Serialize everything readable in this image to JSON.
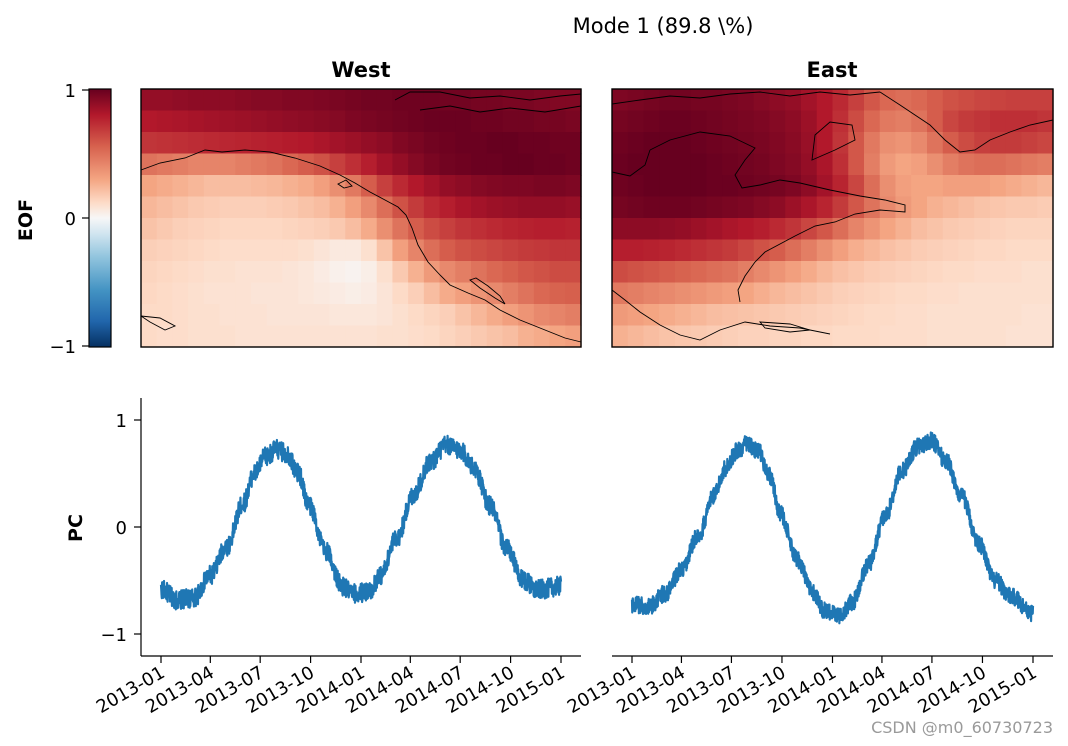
{
  "figure": {
    "suptitle": "Mode 1 (89.8 \\%)",
    "watermark": "CSDN @m0_60730723"
  },
  "chart_data": [
    {
      "type": "heatmap",
      "panel": "EOF West",
      "title": "West",
      "ylabel": "EOF",
      "colorbar": {
        "ticks": [
          "1",
          "0",
          "−1"
        ],
        "range": [
          -1,
          1
        ],
        "colormap": "RdBu_r"
      },
      "rows": 12,
      "cols": 28,
      "description_values": "EOF loading grid (row 0 = north)",
      "values": [
        [
          0.88,
          0.88,
          0.89,
          0.9,
          0.9,
          0.9,
          0.91,
          0.92,
          0.92,
          0.93,
          0.93,
          0.94,
          0.95,
          0.96,
          0.97,
          0.97,
          0.98,
          0.98,
          0.98,
          0.97,
          0.97,
          0.96,
          0.96,
          0.95,
          0.95,
          0.94,
          0.93,
          0.93
        ],
        [
          0.8,
          0.81,
          0.82,
          0.83,
          0.84,
          0.85,
          0.86,
          0.87,
          0.88,
          0.89,
          0.9,
          0.91,
          0.92,
          0.94,
          0.95,
          0.96,
          0.97,
          0.98,
          0.99,
          0.99,
          0.99,
          0.98,
          0.98,
          0.97,
          0.97,
          0.96,
          0.96,
          0.95
        ],
        [
          0.7,
          0.71,
          0.72,
          0.73,
          0.74,
          0.75,
          0.76,
          0.77,
          0.78,
          0.79,
          0.8,
          0.82,
          0.84,
          0.86,
          0.88,
          0.9,
          0.93,
          0.95,
          0.97,
          0.98,
          0.99,
          0.99,
          1.0,
          1.0,
          0.99,
          0.99,
          0.98,
          0.98
        ],
        [
          0.48,
          0.46,
          0.44,
          0.42,
          0.42,
          0.42,
          0.44,
          0.46,
          0.48,
          0.52,
          0.56,
          0.6,
          0.66,
          0.72,
          0.78,
          0.84,
          0.88,
          0.92,
          0.95,
          0.97,
          0.98,
          0.99,
          0.99,
          1.0,
          1.0,
          0.99,
          0.99,
          0.98
        ],
        [
          0.3,
          0.28,
          0.26,
          0.24,
          0.22,
          0.22,
          0.22,
          0.23,
          0.24,
          0.26,
          0.28,
          0.32,
          0.38,
          0.46,
          0.56,
          0.66,
          0.74,
          0.8,
          0.84,
          0.88,
          0.9,
          0.92,
          0.93,
          0.94,
          0.94,
          0.95,
          0.95,
          0.94
        ],
        [
          0.24,
          0.22,
          0.2,
          0.18,
          0.17,
          0.16,
          0.16,
          0.16,
          0.17,
          0.18,
          0.2,
          0.22,
          0.26,
          0.32,
          0.4,
          0.5,
          0.6,
          0.68,
          0.74,
          0.78,
          0.82,
          0.84,
          0.86,
          0.87,
          0.88,
          0.88,
          0.88,
          0.87
        ],
        [
          0.2,
          0.18,
          0.16,
          0.15,
          0.14,
          0.13,
          0.13,
          0.13,
          0.13,
          0.14,
          0.15,
          0.16,
          0.18,
          0.22,
          0.28,
          0.38,
          0.48,
          0.56,
          0.62,
          0.66,
          0.7,
          0.72,
          0.74,
          0.76,
          0.77,
          0.78,
          0.78,
          0.77
        ],
        [
          0.16,
          0.15,
          0.14,
          0.13,
          0.12,
          0.11,
          0.11,
          0.11,
          0.11,
          0.11,
          0.1,
          0.08,
          0.06,
          0.06,
          0.1,
          0.2,
          0.32,
          0.42,
          0.5,
          0.56,
          0.6,
          0.62,
          0.64,
          0.66,
          0.68,
          0.69,
          0.7,
          0.7
        ],
        [
          0.14,
          0.13,
          0.12,
          0.11,
          0.1,
          0.1,
          0.09,
          0.09,
          0.09,
          0.08,
          0.07,
          0.05,
          0.03,
          0.02,
          0.04,
          0.1,
          0.18,
          0.26,
          0.34,
          0.4,
          0.44,
          0.48,
          0.52,
          0.55,
          0.58,
          0.6,
          0.62,
          0.62
        ],
        [
          0.13,
          0.12,
          0.11,
          0.1,
          0.09,
          0.09,
          0.09,
          0.08,
          0.08,
          0.08,
          0.07,
          0.06,
          0.05,
          0.04,
          0.05,
          0.08,
          0.12,
          0.16,
          0.22,
          0.28,
          0.32,
          0.36,
          0.4,
          0.44,
          0.48,
          0.52,
          0.54,
          0.55
        ],
        [
          0.12,
          0.12,
          0.11,
          0.1,
          0.1,
          0.09,
          0.09,
          0.09,
          0.08,
          0.08,
          0.08,
          0.08,
          0.07,
          0.07,
          0.07,
          0.08,
          0.1,
          0.12,
          0.14,
          0.16,
          0.2,
          0.24,
          0.28,
          0.32,
          0.36,
          0.4,
          0.42,
          0.44
        ],
        [
          0.12,
          0.11,
          0.11,
          0.1,
          0.1,
          0.1,
          0.09,
          0.09,
          0.09,
          0.09,
          0.09,
          0.09,
          0.09,
          0.09,
          0.09,
          0.1,
          0.1,
          0.11,
          0.12,
          0.14,
          0.16,
          0.18,
          0.2,
          0.22,
          0.26,
          0.28,
          0.3,
          0.32
        ]
      ]
    },
    {
      "type": "heatmap",
      "panel": "EOF East",
      "title": "East",
      "rows": 12,
      "cols": 28,
      "values": [
        [
          0.94,
          0.95,
          0.96,
          0.97,
          0.97,
          0.96,
          0.96,
          0.95,
          0.94,
          0.92,
          0.9,
          0.88,
          0.84,
          0.8,
          0.74,
          0.66,
          0.58,
          0.52,
          0.5,
          0.52,
          0.56,
          0.6,
          0.62,
          0.64,
          0.65,
          0.66,
          0.66,
          0.66
        ],
        [
          0.96,
          0.97,
          0.98,
          0.99,
          0.99,
          0.98,
          0.97,
          0.96,
          0.95,
          0.94,
          0.92,
          0.9,
          0.86,
          0.8,
          0.72,
          0.62,
          0.52,
          0.46,
          0.44,
          0.48,
          0.56,
          0.64,
          0.68,
          0.7,
          0.72,
          0.72,
          0.72,
          0.7
        ],
        [
          0.98,
          0.99,
          1.0,
          1.0,
          1.0,
          0.99,
          0.98,
          0.97,
          0.96,
          0.95,
          0.93,
          0.91,
          0.87,
          0.8,
          0.7,
          0.58,
          0.46,
          0.38,
          0.36,
          0.4,
          0.48,
          0.56,
          0.62,
          0.66,
          0.68,
          0.68,
          0.66,
          0.64
        ],
        [
          0.99,
          1.0,
          1.0,
          1.0,
          1.0,
          1.0,
          0.99,
          0.98,
          0.97,
          0.96,
          0.94,
          0.92,
          0.88,
          0.82,
          0.72,
          0.58,
          0.44,
          0.34,
          0.3,
          0.32,
          0.38,
          0.44,
          0.48,
          0.5,
          0.5,
          0.48,
          0.46,
          0.44
        ],
        [
          0.98,
          0.99,
          1.0,
          1.0,
          1.0,
          1.0,
          0.99,
          0.99,
          0.98,
          0.97,
          0.96,
          0.94,
          0.9,
          0.84,
          0.76,
          0.64,
          0.5,
          0.38,
          0.32,
          0.3,
          0.3,
          0.32,
          0.32,
          0.32,
          0.3,
          0.28,
          0.26,
          0.24
        ],
        [
          0.96,
          0.97,
          0.98,
          0.98,
          0.98,
          0.97,
          0.96,
          0.95,
          0.94,
          0.92,
          0.9,
          0.86,
          0.82,
          0.76,
          0.68,
          0.58,
          0.48,
          0.4,
          0.34,
          0.3,
          0.26,
          0.24,
          0.22,
          0.2,
          0.19,
          0.18,
          0.18,
          0.17
        ],
        [
          0.9,
          0.9,
          0.9,
          0.89,
          0.88,
          0.86,
          0.84,
          0.82,
          0.8,
          0.78,
          0.74,
          0.7,
          0.64,
          0.58,
          0.5,
          0.42,
          0.36,
          0.3,
          0.26,
          0.22,
          0.2,
          0.18,
          0.17,
          0.16,
          0.15,
          0.14,
          0.14,
          0.14
        ],
        [
          0.78,
          0.78,
          0.77,
          0.76,
          0.74,
          0.72,
          0.7,
          0.68,
          0.64,
          0.6,
          0.56,
          0.5,
          0.44,
          0.38,
          0.32,
          0.27,
          0.24,
          0.21,
          0.19,
          0.17,
          0.16,
          0.15,
          0.14,
          0.13,
          0.13,
          0.12,
          0.12,
          0.12
        ],
        [
          0.62,
          0.6,
          0.58,
          0.56,
          0.54,
          0.52,
          0.5,
          0.48,
          0.44,
          0.4,
          0.36,
          0.32,
          0.28,
          0.24,
          0.21,
          0.19,
          0.17,
          0.16,
          0.15,
          0.14,
          0.13,
          0.12,
          0.12,
          0.11,
          0.11,
          0.11,
          0.1,
          0.1
        ],
        [
          0.46,
          0.44,
          0.42,
          0.4,
          0.38,
          0.36,
          0.34,
          0.32,
          0.3,
          0.27,
          0.24,
          0.22,
          0.2,
          0.18,
          0.16,
          0.15,
          0.14,
          0.13,
          0.12,
          0.12,
          0.11,
          0.11,
          0.1,
          0.1,
          0.1,
          0.1,
          0.1,
          0.1
        ],
        [
          0.34,
          0.32,
          0.3,
          0.28,
          0.26,
          0.24,
          0.22,
          0.21,
          0.2,
          0.19,
          0.18,
          0.17,
          0.16,
          0.15,
          0.14,
          0.13,
          0.12,
          0.12,
          0.11,
          0.11,
          0.1,
          0.1,
          0.1,
          0.1,
          0.1,
          0.1,
          0.09,
          0.09
        ],
        [
          0.26,
          0.24,
          0.22,
          0.2,
          0.19,
          0.18,
          0.17,
          0.16,
          0.15,
          0.15,
          0.14,
          0.14,
          0.13,
          0.13,
          0.12,
          0.12,
          0.12,
          0.11,
          0.11,
          0.11,
          0.1,
          0.1,
          0.1,
          0.1,
          0.1,
          0.09,
          0.09,
          0.09
        ]
      ]
    },
    {
      "type": "line",
      "panel": "PC West",
      "ylabel": "PC",
      "ylim": [
        -1.2,
        1.2
      ],
      "yticks": [
        {
          "value": 1,
          "label": "1"
        },
        {
          "value": 0,
          "label": "0"
        },
        {
          "value": -1,
          "label": "−1"
        }
      ],
      "x_start": "2013-01-01",
      "x_end": "2014-12-31",
      "xticks": [
        "2013-01",
        "2013-04",
        "2013-07",
        "2013-10",
        "2014-01",
        "2014-04",
        "2014-07",
        "2014-10",
        "2015-01"
      ],
      "series": [
        {
          "name": "PC West",
          "color": "#1f77b4",
          "control_points_day_value": [
            [
              0,
              -0.58
            ],
            [
              30,
              -0.68
            ],
            [
              60,
              -0.66
            ],
            [
              90,
              -0.45
            ],
            [
              120,
              -0.18
            ],
            [
              150,
              0.22
            ],
            [
              170,
              0.5
            ],
            [
              190,
              0.65
            ],
            [
              210,
              0.72
            ],
            [
              230,
              0.68
            ],
            [
              250,
              0.5
            ],
            [
              270,
              0.2
            ],
            [
              300,
              -0.22
            ],
            [
              330,
              -0.55
            ],
            [
              350,
              -0.62
            ],
            [
              380,
              -0.6
            ],
            [
              400,
              -0.45
            ],
            [
              430,
              -0.1
            ],
            [
              460,
              0.3
            ],
            [
              490,
              0.6
            ],
            [
              520,
              0.76
            ],
            [
              545,
              0.72
            ],
            [
              570,
              0.55
            ],
            [
              600,
              0.2
            ],
            [
              630,
              -0.2
            ],
            [
              660,
              -0.5
            ],
            [
              690,
              -0.58
            ],
            [
              729,
              -0.55
            ]
          ],
          "noise_amplitude": 0.09
        }
      ]
    },
    {
      "type": "line",
      "panel": "PC East",
      "ylim": [
        -1.2,
        1.2
      ],
      "x_start": "2013-01-01",
      "x_end": "2014-12-31",
      "xticks": [
        "2013-01",
        "2013-04",
        "2013-07",
        "2013-10",
        "2014-01",
        "2014-04",
        "2014-07",
        "2014-10",
        "2015-01"
      ],
      "series": [
        {
          "name": "PC East",
          "color": "#1f77b4",
          "control_points_day_value": [
            [
              0,
              -0.72
            ],
            [
              30,
              -0.74
            ],
            [
              60,
              -0.62
            ],
            [
              90,
              -0.4
            ],
            [
              120,
              -0.08
            ],
            [
              150,
              0.3
            ],
            [
              170,
              0.55
            ],
            [
              190,
              0.7
            ],
            [
              210,
              0.78
            ],
            [
              230,
              0.7
            ],
            [
              250,
              0.48
            ],
            [
              270,
              0.12
            ],
            [
              300,
              -0.3
            ],
            [
              330,
              -0.62
            ],
            [
              350,
              -0.78
            ],
            [
              380,
              -0.82
            ],
            [
              400,
              -0.7
            ],
            [
              430,
              -0.35
            ],
            [
              460,
              0.1
            ],
            [
              490,
              0.52
            ],
            [
              520,
              0.75
            ],
            [
              545,
              0.8
            ],
            [
              570,
              0.62
            ],
            [
              600,
              0.28
            ],
            [
              630,
              -0.15
            ],
            [
              660,
              -0.5
            ],
            [
              690,
              -0.65
            ],
            [
              729,
              -0.8
            ]
          ],
          "noise_amplitude": 0.08
        }
      ]
    }
  ]
}
